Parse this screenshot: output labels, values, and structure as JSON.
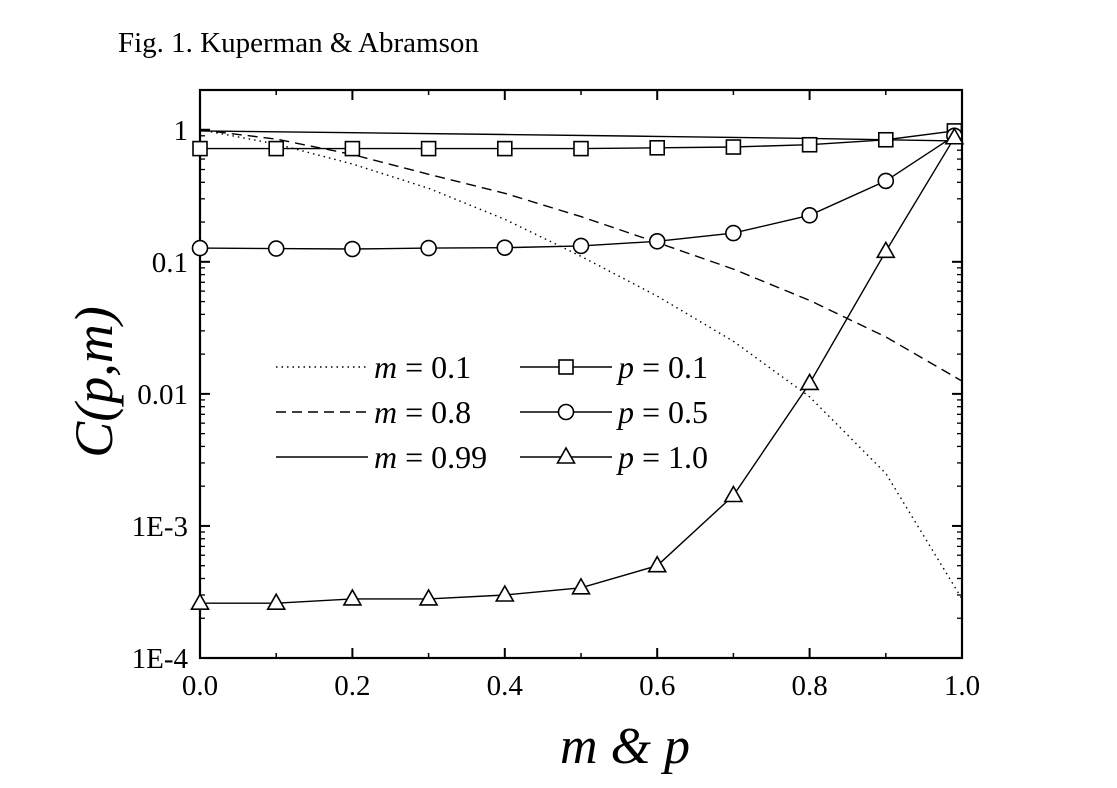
{
  "header": {
    "text": "Fig. 1. Kuperman & Abramson"
  },
  "chart_data": {
    "type": "line",
    "title": "",
    "xlabel": "m & p",
    "ylabel": "C(p,m)",
    "xlim": [
      0.0,
      1.0
    ],
    "ylim": [
      0.0001,
      2
    ],
    "yscale": "log",
    "x_ticks": [
      0.0,
      0.2,
      0.4,
      0.6,
      0.8,
      1.0
    ],
    "x_tick_labels": [
      "0.0",
      "0.2",
      "0.4",
      "0.6",
      "0.8",
      "1.0"
    ],
    "y_ticks": [
      1,
      0.1,
      0.01,
      0.001,
      0.0001
    ],
    "y_tick_labels": [
      "1",
      "0.1",
      "0.01",
      "1E-3",
      "1E-4"
    ],
    "grid": false,
    "legend_position": "center-left",
    "series": [
      {
        "legend_text": "= 0.1",
        "legend_var": "m",
        "style": "dotted",
        "marker": "none",
        "x": [
          0.0,
          0.1,
          0.2,
          0.3,
          0.4,
          0.5,
          0.6,
          0.7,
          0.8,
          0.9,
          1.0
        ],
        "y": [
          1.0,
          0.78,
          0.55,
          0.36,
          0.21,
          0.11,
          0.055,
          0.025,
          0.0095,
          0.0025,
          0.00028
        ]
      },
      {
        "legend_text": "= 0.8",
        "legend_var": "m",
        "style": "dashed",
        "marker": "none",
        "x": [
          0.0,
          0.1,
          0.2,
          0.3,
          0.4,
          0.5,
          0.6,
          0.7,
          0.8,
          0.9,
          1.0
        ],
        "y": [
          1.0,
          0.85,
          0.65,
          0.46,
          0.33,
          0.22,
          0.14,
          0.088,
          0.051,
          0.027,
          0.0125
        ]
      },
      {
        "legend_text": "= 0.99",
        "legend_var": "m",
        "style": "solid",
        "marker": "none",
        "x": [
          0.0,
          0.2,
          0.4,
          0.6,
          0.8,
          1.0
        ],
        "y": [
          0.98,
          0.95,
          0.92,
          0.89,
          0.86,
          0.82
        ]
      },
      {
        "legend_text": "= 0.1",
        "legend_var": "p",
        "style": "solid",
        "marker": "square",
        "x": [
          0.0,
          0.1,
          0.2,
          0.3,
          0.4,
          0.5,
          0.6,
          0.7,
          0.8,
          0.9,
          0.99
        ],
        "y": [
          0.72,
          0.72,
          0.72,
          0.72,
          0.72,
          0.72,
          0.73,
          0.74,
          0.77,
          0.84,
          0.98
        ]
      },
      {
        "legend_text": "= 0.5",
        "legend_var": "p",
        "style": "solid",
        "marker": "circle",
        "x": [
          0.0,
          0.1,
          0.2,
          0.3,
          0.4,
          0.5,
          0.6,
          0.7,
          0.8,
          0.9,
          0.99
        ],
        "y": [
          0.127,
          0.126,
          0.125,
          0.127,
          0.128,
          0.132,
          0.143,
          0.165,
          0.225,
          0.41,
          0.9
        ]
      },
      {
        "legend_text": "= 1.0",
        "legend_var": "p",
        "style": "solid",
        "marker": "triangle",
        "x": [
          0.0,
          0.1,
          0.2,
          0.3,
          0.4,
          0.5,
          0.6,
          0.7,
          0.8,
          0.9,
          0.99
        ],
        "y": [
          0.00026,
          0.00026,
          0.00028,
          0.00028,
          0.0003,
          0.00034,
          0.0005,
          0.0017,
          0.012,
          0.12,
          0.87
        ]
      }
    ]
  }
}
